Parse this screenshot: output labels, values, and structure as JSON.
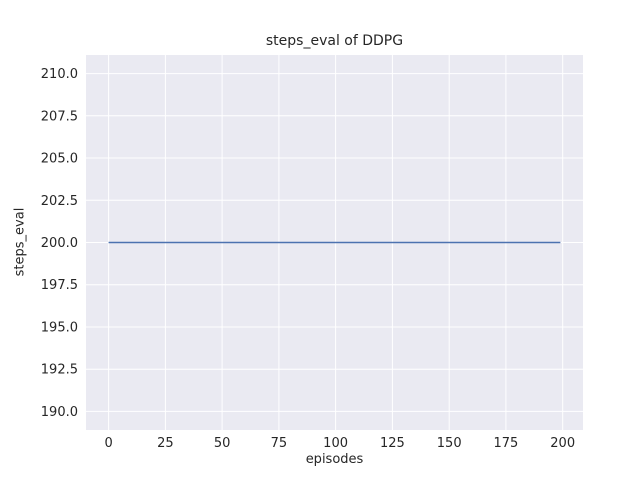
{
  "chart_data": {
    "type": "line",
    "title": "steps_eval of DDPG",
    "xlabel": "episodes",
    "ylabel": "steps_eval",
    "xlim": [
      -9.95,
      208.95
    ],
    "ylim": [
      188.9,
      211.1
    ],
    "x_tick_values": [
      0,
      25,
      50,
      75,
      100,
      125,
      150,
      175,
      200
    ],
    "x_tick_labels": [
      "0",
      "25",
      "50",
      "75",
      "100",
      "125",
      "150",
      "175",
      "200"
    ],
    "y_tick_values": [
      190.0,
      192.5,
      195.0,
      197.5,
      200.0,
      202.5,
      205.0,
      207.5,
      210.0
    ],
    "y_tick_labels": [
      "190.0",
      "192.5",
      "195.0",
      "197.5",
      "200.0",
      "202.5",
      "205.0",
      "207.5",
      "210.0"
    ],
    "grid": true,
    "legend": null,
    "style": {
      "plot_background": "#eaeaf2",
      "grid_color": "#ffffff",
      "text_color": "#262626",
      "line_color": "#4c72b0"
    },
    "series": [
      {
        "name": "steps_eval",
        "x": [
          0,
          199
        ],
        "y": [
          200.0,
          200.0
        ],
        "color": "#4c72b0",
        "description": "constant value 200.0 across episodes 0 through 199"
      }
    ]
  }
}
